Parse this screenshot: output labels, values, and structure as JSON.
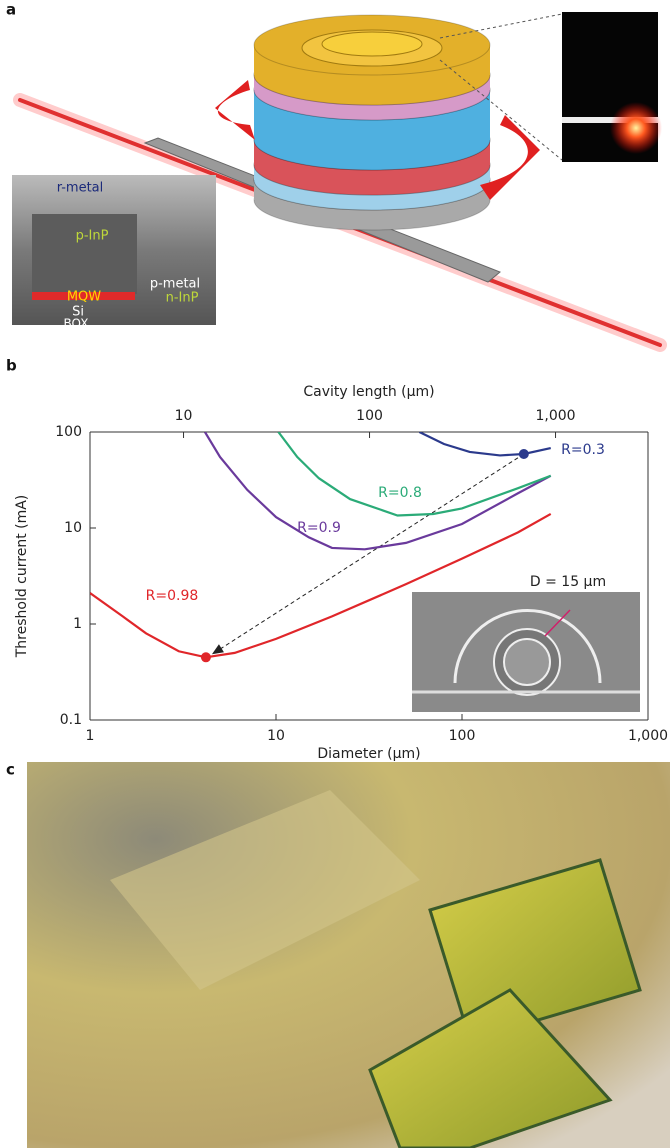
{
  "panels": {
    "a": {
      "label": "a",
      "inset_labels": [
        "r-metal",
        "p-InP",
        "MQW",
        "Si",
        "BOX",
        "p-metal",
        "n-InP"
      ]
    },
    "c": {
      "label": "c"
    }
  },
  "chart_data": {
    "type": "line",
    "panel_label": "b",
    "xlabel": "Diameter (µm)",
    "ylabel": "Threshold current (mA)",
    "x2label": "Cavity length (µm)",
    "xscale": "log",
    "yscale": "log",
    "xlim": [
      1,
      1000
    ],
    "ylim": [
      0.1,
      100
    ],
    "x2lim": [
      3.1416,
      3141.6
    ],
    "xticks": [
      1,
      10,
      100,
      {
        "value": 1000,
        "label": "1,000"
      }
    ],
    "yticks": [
      0.1,
      1,
      10,
      100
    ],
    "x2ticks": [
      10,
      100,
      {
        "value": 1000,
        "label": "1,000"
      }
    ],
    "series": [
      {
        "name": "R=0.98",
        "color": "#e0262a",
        "x": [
          1,
          1.5,
          2,
          3,
          4.2,
          6,
          10,
          20,
          50,
          100,
          200,
          300
        ],
        "values": [
          2.1,
          1.2,
          0.8,
          0.52,
          0.45,
          0.5,
          0.7,
          1.2,
          2.6,
          4.8,
          9,
          14
        ]
      },
      {
        "name": "R=0.9",
        "color": "#6a3a9c",
        "x": [
          4.15,
          5,
          7,
          10,
          15,
          20,
          30,
          50,
          100,
          200,
          300
        ],
        "values": [
          100,
          55,
          25,
          13,
          8,
          6.2,
          6,
          7,
          11,
          23,
          35
        ]
      },
      {
        "name": "R=0.8",
        "color": "#2bab78",
        "x": [
          10.3,
          13,
          17,
          25,
          45,
          70,
          100,
          200,
          300
        ],
        "values": [
          100,
          55,
          33,
          20,
          13.5,
          14,
          16,
          26,
          35
        ]
      },
      {
        "name": "R=0.3",
        "color": "#2b3a8c",
        "x": [
          59,
          80,
          110,
          160,
          215,
          300
        ],
        "values": [
          100,
          75,
          62,
          57,
          59,
          68
        ]
      }
    ],
    "markers": [
      {
        "x": 4.2,
        "y": 0.45,
        "color": "#e0262a"
      },
      {
        "x": 215,
        "y": 59,
        "color": "#2b3a8c"
      }
    ],
    "inset_label": "D = 15 µm"
  }
}
